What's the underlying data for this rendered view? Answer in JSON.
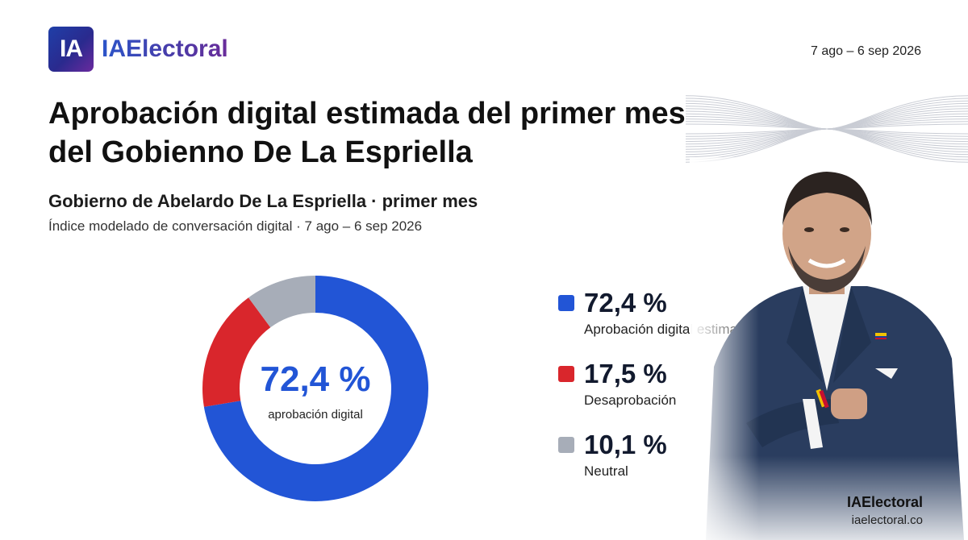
{
  "brand": {
    "logo_mark": "IA",
    "name": "IAElectoral",
    "footer_name": "IAElectoral",
    "footer_url": "iaelectoral.co"
  },
  "date_range": "7 ago – 6 sep 2026",
  "title": "Aprobación digital estimada del primer mes del Gobienno De La Espriella",
  "subtitle": "Gobierno de Abelardo De La Espriella · primer mes",
  "caption": "Índice modelado de conversación digital · 7 ago – 6 sep 2026",
  "chart_data": {
    "type": "pie",
    "donut": true,
    "center_value": "72,4 %",
    "center_label": "aprobación digital",
    "slices": [
      {
        "label": "Aprobación digital estimada",
        "value": 72.4,
        "display": "72,4 %",
        "color": "#2255d6"
      },
      {
        "label": "Desaprobación",
        "value": 17.5,
        "display": "17,5 %",
        "color": "#d9262c"
      },
      {
        "label": "Neutral",
        "value": 10.1,
        "display": "10,1 %",
        "color": "#a7adb8"
      }
    ],
    "legend_position": "right"
  },
  "colors": {
    "background": "#ffffff",
    "text": "#121212"
  },
  "icons": {
    "decor": "wave-lines-graphic",
    "portrait": "person-portrait"
  }
}
